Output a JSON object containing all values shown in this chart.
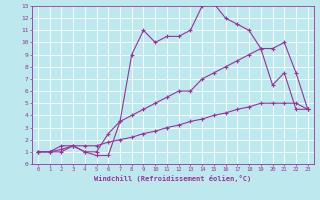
{
  "xlabel": "Windchill (Refroidissement éolien,°C)",
  "bg_color": "#bde8ee",
  "line_color": "#993399",
  "grid_color": "#ffffff",
  "xlim": [
    -0.5,
    23.5
  ],
  "ylim": [
    0,
    13
  ],
  "xticks": [
    0,
    1,
    2,
    3,
    4,
    5,
    6,
    7,
    8,
    9,
    10,
    11,
    12,
    13,
    14,
    15,
    16,
    17,
    18,
    19,
    20,
    21,
    22,
    23
  ],
  "yticks": [
    0,
    1,
    2,
    3,
    4,
    5,
    6,
    7,
    8,
    9,
    10,
    11,
    12,
    13
  ],
  "curve1_x": [
    0,
    1,
    2,
    3,
    4,
    5,
    6,
    7,
    8,
    9,
    10,
    11,
    12,
    13,
    14,
    15,
    16,
    17,
    18,
    19,
    20,
    21,
    22,
    23
  ],
  "curve1_y": [
    1,
    1,
    1,
    1.5,
    1,
    0.7,
    0.7,
    3.5,
    9,
    11,
    10,
    10.5,
    10.5,
    11,
    13,
    13.2,
    12,
    11.5,
    11,
    9.5,
    6.5,
    7.5,
    4.5,
    4.5
  ],
  "curve2_x": [
    0,
    1,
    2,
    3,
    4,
    5,
    6,
    7,
    8,
    9,
    10,
    11,
    12,
    13,
    14,
    15,
    16,
    17,
    18,
    19,
    20,
    21,
    22,
    23
  ],
  "curve2_y": [
    1,
    1,
    1.5,
    1.5,
    1,
    1,
    2.5,
    3.5,
    4,
    4.5,
    5,
    5.5,
    6,
    6,
    7,
    7.5,
    8,
    8.5,
    9,
    9.5,
    9.5,
    10,
    7.5,
    4.5
  ],
  "curve3_x": [
    0,
    1,
    2,
    3,
    4,
    5,
    6,
    7,
    8,
    9,
    10,
    11,
    12,
    13,
    14,
    15,
    16,
    17,
    18,
    19,
    20,
    21,
    22,
    23
  ],
  "curve3_y": [
    1,
    1,
    1.2,
    1.5,
    1.5,
    1.5,
    1.8,
    2.0,
    2.2,
    2.5,
    2.7,
    3.0,
    3.2,
    3.5,
    3.7,
    4.0,
    4.2,
    4.5,
    4.7,
    5.0,
    5.0,
    5.0,
    5.0,
    4.5
  ]
}
